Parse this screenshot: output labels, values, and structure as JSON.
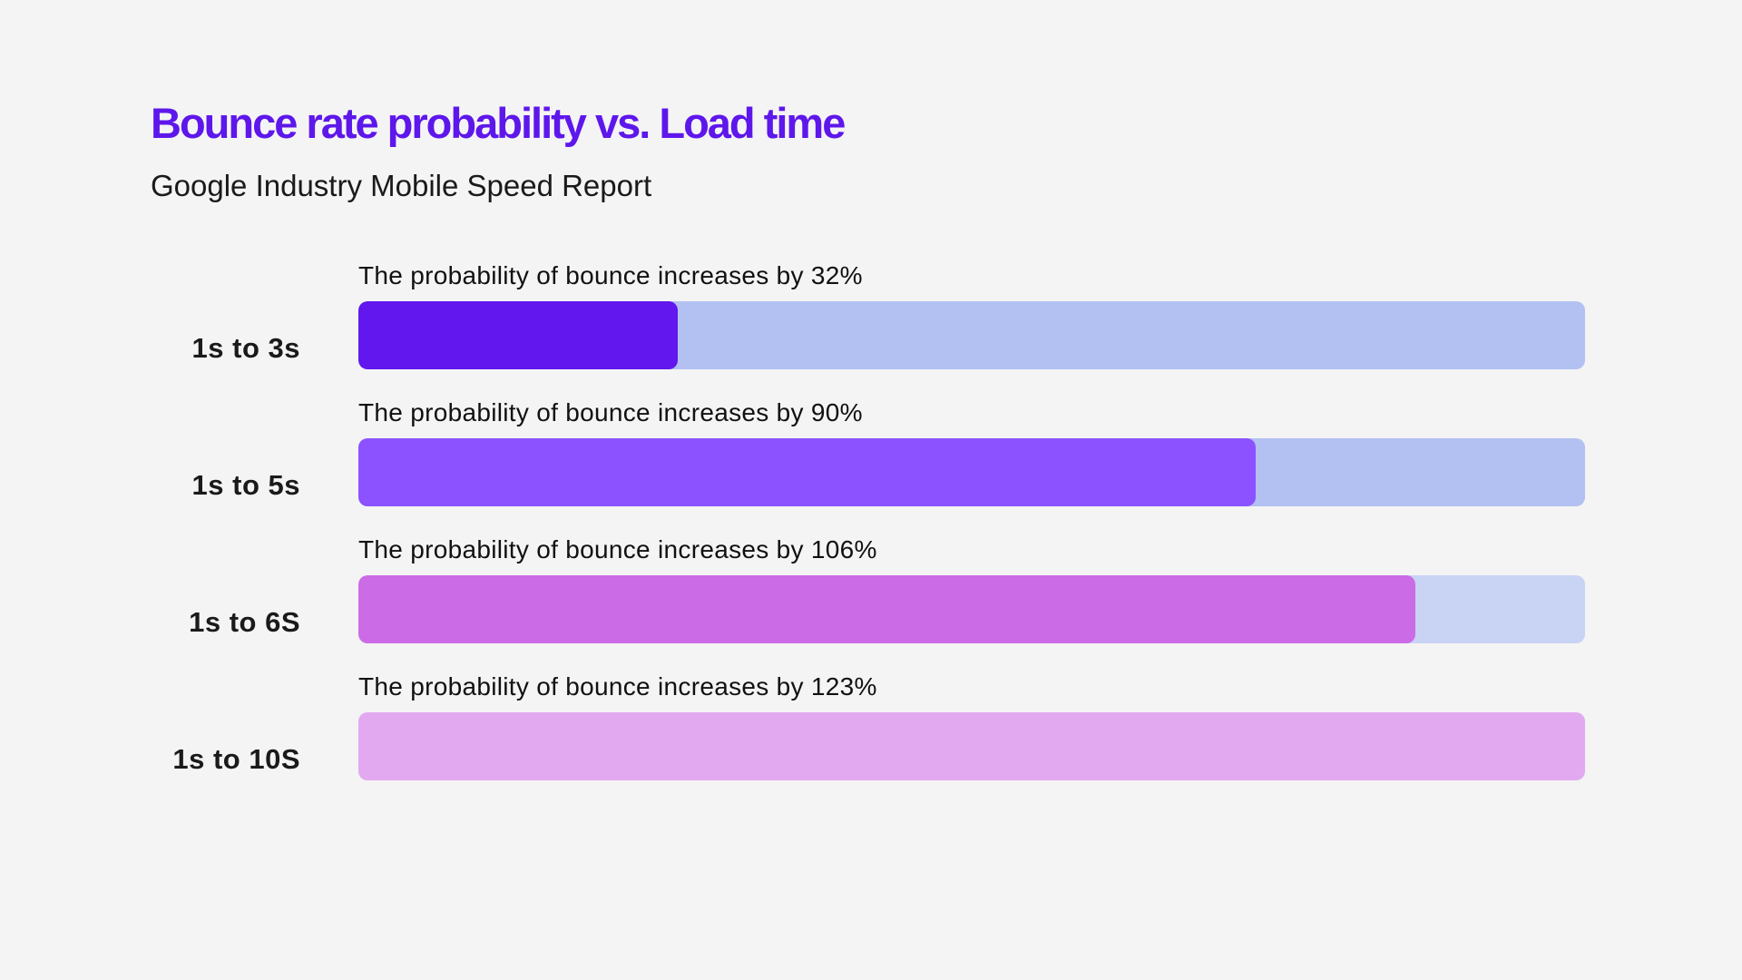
{
  "chart_data": {
    "type": "bar",
    "orientation": "horizontal",
    "title": "Bounce rate probability vs. Load time",
    "subtitle": "Google Industry Mobile Speed Report",
    "xlim": [
      0,
      123
    ],
    "grid": false,
    "categories": [
      "1s to 3s",
      "1s to 5s",
      "1s to 6S",
      "1s to 10S"
    ],
    "values": [
      32,
      90,
      106,
      123
    ],
    "unit": "%",
    "annotations": [
      "The probability of bounce increases by 32%",
      "The probability of bounce increases by 90%",
      "The probability of bounce increases by 106%",
      "The probability of bounce increases by 123%"
    ],
    "fill_colors": [
      "#6117ee",
      "#8c52ff",
      "#cb6ce6",
      "#e2a9f1"
    ],
    "track_colors": [
      "#b3c1f2",
      "#b3c1f2",
      "#c9d3f4",
      "#c9d3f4"
    ]
  }
}
